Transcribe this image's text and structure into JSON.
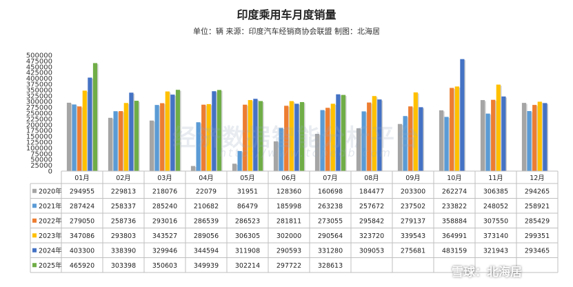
{
  "title": "印度乘用车月度销量",
  "subtitle": "单位：辆  来源：印度汽车经销商协会联盟 制图：北海居",
  "watermark": "经济数据智能分析平台",
  "watermark_url": "http://www.topedb.com",
  "brand": "雪球：北海居",
  "chart_data": {
    "type": "bar",
    "title": "印度乘用车月度销量",
    "ylim": [
      0,
      500000
    ],
    "yticks": [
      0,
      25000,
      50000,
      75000,
      100000,
      125000,
      150000,
      175000,
      200000,
      225000,
      250000,
      275000,
      300000,
      325000,
      350000,
      375000,
      400000,
      425000,
      450000,
      475000,
      500000
    ],
    "grid": false,
    "legend": "table-below",
    "categories": [
      "01月",
      "02月",
      "03月",
      "04月",
      "05月",
      "06月",
      "07月",
      "08月",
      "09月",
      "10月",
      "11月",
      "12月"
    ],
    "series": [
      {
        "name": "2020年",
        "color": "#a5a5a5",
        "values": [
          294955,
          229813,
          218076,
          22079,
          31951,
          128360,
          160698,
          184477,
          203300,
          262274,
          306385,
          294265
        ]
      },
      {
        "name": "2021年",
        "color": "#5b9bd5",
        "values": [
          287424,
          258337,
          285240,
          210682,
          86479,
          185998,
          263238,
          257672,
          237502,
          233822,
          248052,
          258921
        ]
      },
      {
        "name": "2022年",
        "color": "#ed7d31",
        "values": [
          279050,
          258736,
          293016,
          286539,
          286523,
          281811,
          273055,
          295842,
          279137,
          358884,
          307550,
          285429
        ]
      },
      {
        "name": "2023年",
        "color": "#ffc000",
        "values": [
          347086,
          293803,
          343527,
          289056,
          306305,
          302000,
          290564,
          323720,
          339543,
          364991,
          373140,
          299351
        ]
      },
      {
        "name": "2024年",
        "color": "#4472c4",
        "values": [
          403300,
          338390,
          329946,
          344594,
          311908,
          290593,
          331280,
          309053,
          275681,
          483159,
          321943,
          293465
        ]
      },
      {
        "name": "2025年",
        "color": "#70ad47",
        "values": [
          465920,
          303398,
          350603,
          349939,
          302214,
          297722,
          328613,
          null,
          null,
          null,
          null,
          null
        ]
      }
    ]
  }
}
